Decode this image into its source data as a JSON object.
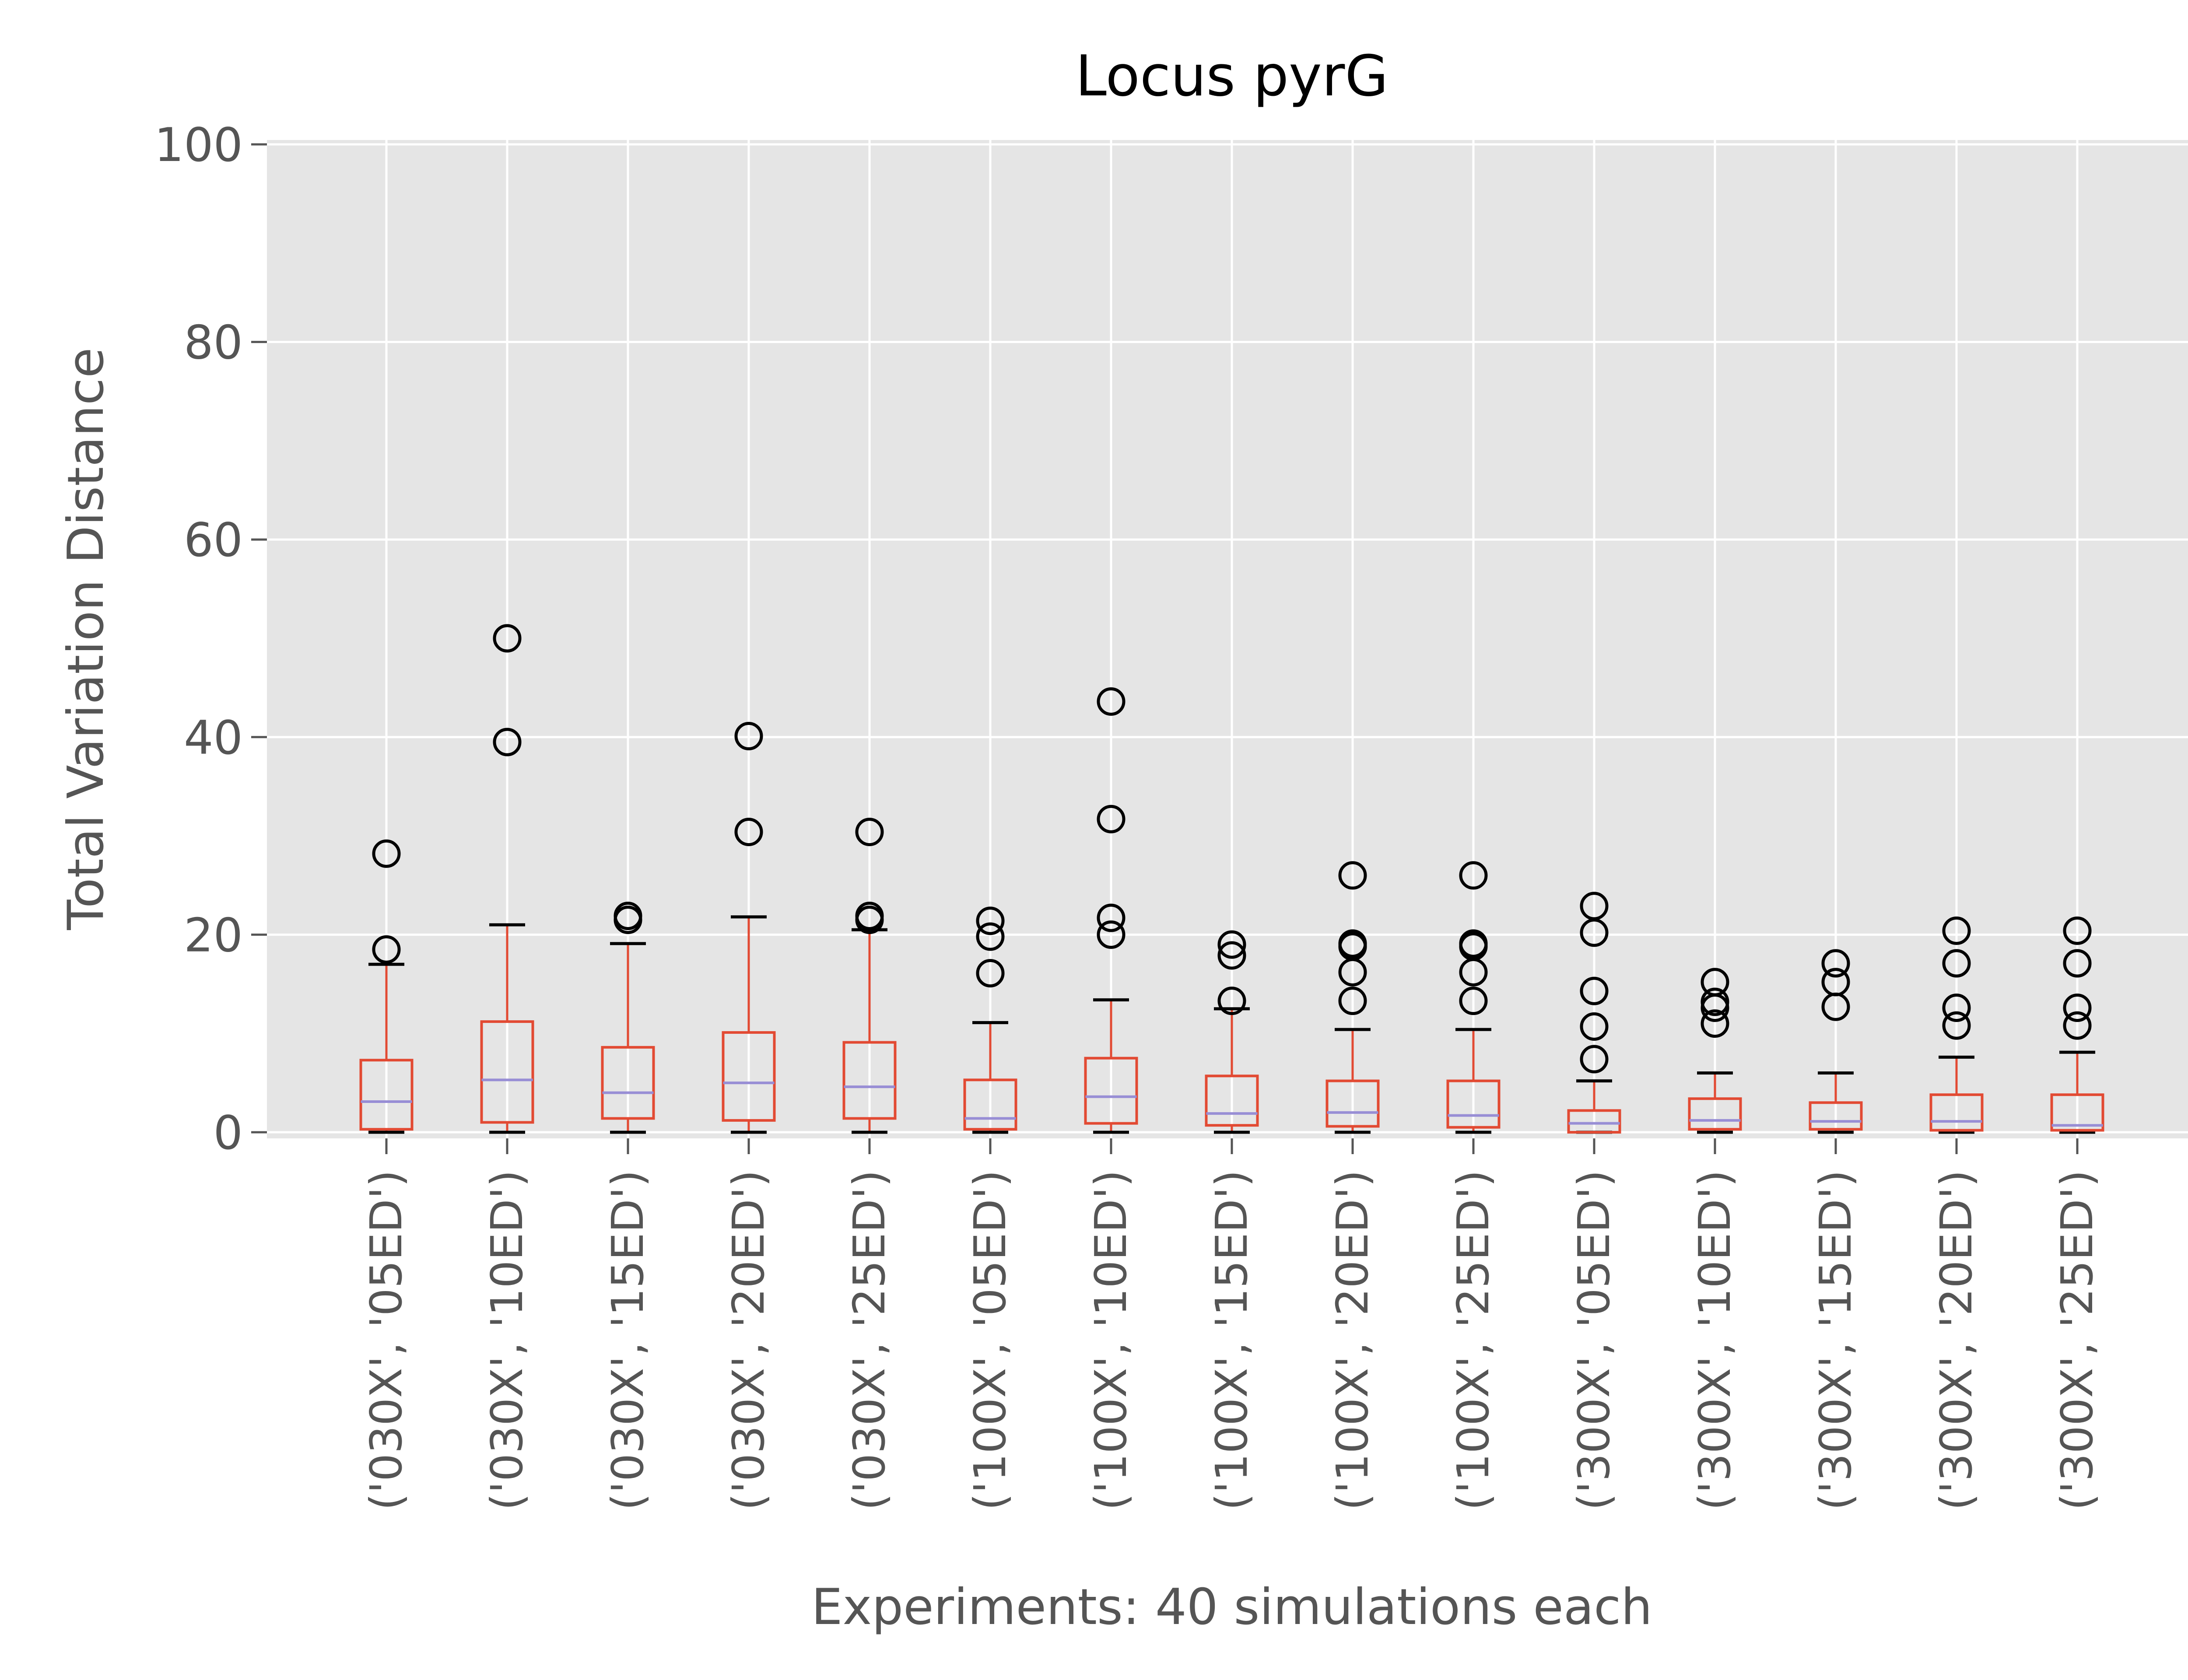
{
  "chart_data": {
    "type": "box",
    "title": "Locus pyrG",
    "xlabel": "Experiments: 40 simulations each",
    "ylabel": "Total Variation Distance",
    "ylim": [
      0,
      100
    ],
    "yticks": [
      0,
      20,
      40,
      60,
      80,
      100
    ],
    "grid": true,
    "legend": "none",
    "colors": {
      "background": "#E5E5E5",
      "grid": "#FFFFFF",
      "box": "#E24A33",
      "median": "#988ED5",
      "caps": "#000000",
      "tick_text": "#555555",
      "title_text": "#000000"
    },
    "categories": [
      "('030X', '05ED')",
      "('030X', '10ED')",
      "('030X', '15ED')",
      "('030X', '20ED')",
      "('030X', '25ED')",
      "('100X', '05ED')",
      "('100X', '10ED')",
      "('100X', '15ED')",
      "('100X', '20ED')",
      "('100X', '25ED')",
      "('300X', '05ED')",
      "('300X', '10ED')",
      "('300X', '15ED')",
      "('300X', '20ED')",
      "('300X', '25ED')"
    ],
    "boxes": [
      {
        "whislo": 0,
        "q1": 0.3,
        "med": 3.1,
        "q3": 7.3,
        "whishi": 17.0,
        "fliers": [
          18.5,
          28.2
        ]
      },
      {
        "whislo": 0,
        "q1": 1.0,
        "med": 5.3,
        "q3": 11.2,
        "whishi": 21.0,
        "fliers": [
          39.5,
          50.0
        ]
      },
      {
        "whislo": 0,
        "q1": 1.4,
        "med": 4.0,
        "q3": 8.6,
        "whishi": 19.1,
        "fliers": [
          21.5,
          21.9
        ]
      },
      {
        "whislo": 0,
        "q1": 1.2,
        "med": 5.0,
        "q3": 10.1,
        "whishi": 21.8,
        "fliers": [
          30.4,
          40.1
        ]
      },
      {
        "whislo": 0,
        "q1": 1.4,
        "med": 4.6,
        "q3": 9.1,
        "whishi": 20.5,
        "fliers": [
          21.5,
          21.9,
          30.4
        ]
      },
      {
        "whislo": 0,
        "q1": 0.3,
        "med": 1.4,
        "q3": 5.3,
        "whishi": 11.1,
        "fliers": [
          16.1,
          19.8,
          21.4
        ]
      },
      {
        "whislo": 0,
        "q1": 0.9,
        "med": 3.6,
        "q3": 7.5,
        "whishi": 13.4,
        "fliers": [
          20.0,
          21.7,
          31.7,
          43.6
        ]
      },
      {
        "whislo": 0,
        "q1": 0.7,
        "med": 1.9,
        "q3": 5.7,
        "whishi": 12.5,
        "fliers": [
          13.3,
          17.9,
          19.0
        ]
      },
      {
        "whislo": 0,
        "q1": 0.6,
        "med": 2.0,
        "q3": 5.2,
        "whishi": 10.4,
        "fliers": [
          13.3,
          16.2,
          18.8,
          19.1,
          26.0
        ]
      },
      {
        "whislo": 0,
        "q1": 0.5,
        "med": 1.7,
        "q3": 5.2,
        "whishi": 10.4,
        "fliers": [
          13.3,
          16.2,
          18.8,
          19.1,
          26.0
        ]
      },
      {
        "whislo": 0,
        "q1": 0,
        "med": 0.9,
        "q3": 2.2,
        "whishi": 5.2,
        "fliers": [
          7.4,
          10.7,
          14.3,
          20.2,
          22.9
        ]
      },
      {
        "whislo": 0,
        "q1": 0.3,
        "med": 1.2,
        "q3": 3.4,
        "whishi": 6.0,
        "fliers": [
          11.0,
          12.6,
          13.2,
          15.2
        ]
      },
      {
        "whislo": 0,
        "q1": 0.3,
        "med": 1.1,
        "q3": 3.0,
        "whishi": 6.0,
        "fliers": [
          12.7,
          15.2,
          17.1
        ]
      },
      {
        "whislo": 0,
        "q1": 0.2,
        "med": 1.1,
        "q3": 3.8,
        "whishi": 7.6,
        "fliers": [
          10.8,
          12.6,
          17.1,
          20.4
        ]
      },
      {
        "whislo": 0,
        "q1": 0.2,
        "med": 0.7,
        "q3": 3.8,
        "whishi": 8.1,
        "fliers": [
          10.8,
          12.6,
          17.1,
          20.4
        ]
      }
    ]
  }
}
